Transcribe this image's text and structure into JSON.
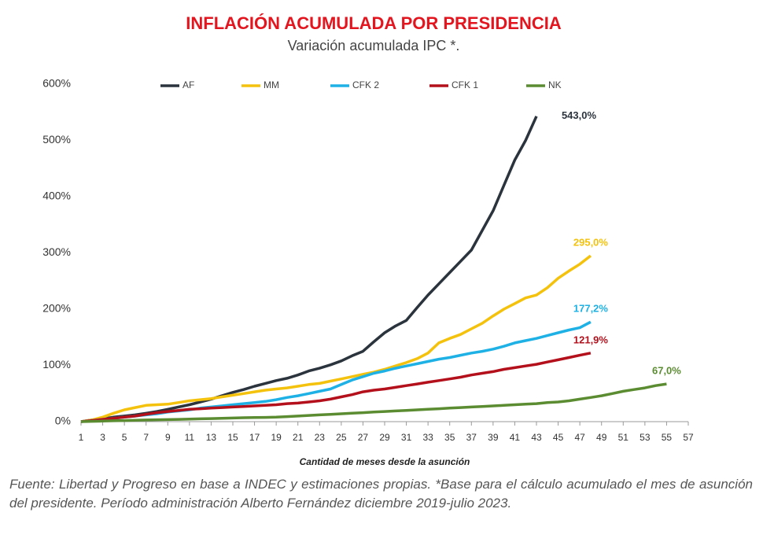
{
  "chart_data": {
    "type": "line",
    "title": "INFLACIÓN ACUMULADA POR PRESIDENCIA",
    "subtitle": "Variación acumulada IPC *.",
    "x_label": "Cantidad de meses desde la asunción",
    "footnote": "Fuente: Libertad y Progreso en base a INDEC y estimaciones propias. *Base para el cálculo acumulado el mes de asunción del presidente. Período administración Alberto Fernández diciembre 2019-julio 2023.",
    "x": [
      1,
      2,
      3,
      4,
      5,
      6,
      7,
      8,
      9,
      10,
      11,
      12,
      13,
      14,
      15,
      16,
      17,
      18,
      19,
      20,
      21,
      22,
      23,
      24,
      25,
      26,
      27,
      28,
      29,
      30,
      31,
      32,
      33,
      34,
      35,
      36,
      37,
      38,
      39,
      40,
      41,
      42,
      43,
      44,
      45,
      46,
      47,
      48,
      49,
      50,
      51,
      52,
      53,
      54,
      55
    ],
    "xlim": [
      1,
      57
    ],
    "xticks": [
      1,
      3,
      5,
      7,
      9,
      11,
      13,
      15,
      17,
      19,
      21,
      23,
      25,
      27,
      29,
      31,
      33,
      35,
      37,
      39,
      41,
      43,
      45,
      47,
      49,
      51,
      53,
      55,
      57
    ],
    "ylim": [
      0,
      600
    ],
    "yticks": [
      {
        "value": 0,
        "label": "0%"
      },
      {
        "value": 100,
        "label": "100%"
      },
      {
        "value": 200,
        "label": "200%"
      },
      {
        "value": 300,
        "label": "300%"
      },
      {
        "value": 400,
        "label": "400%"
      },
      {
        "value": 500,
        "label": "500%"
      },
      {
        "value": 600,
        "label": "600%"
      }
    ],
    "legend": "top",
    "series": [
      {
        "name": "AF",
        "color": "#2b333d",
        "end_label": "543,0%",
        "values": [
          0,
          3,
          5,
          8,
          10,
          12,
          15,
          18,
          22,
          26,
          30,
          35,
          40,
          46,
          52,
          57,
          63,
          68,
          73,
          77,
          83,
          90,
          95,
          101,
          108,
          117,
          125,
          142,
          158,
          170,
          180,
          203,
          225,
          245,
          265,
          285,
          305,
          340,
          375,
          420,
          465,
          500,
          543,
          null,
          null,
          null,
          null,
          null,
          null,
          null,
          null,
          null,
          null,
          null,
          null
        ]
      },
      {
        "name": "MM",
        "color": "#f4c20d",
        "end_label": "295,0%",
        "values": [
          0,
          3,
          8,
          15,
          21,
          25,
          29,
          30,
          31,
          34,
          37,
          39,
          41,
          44,
          47,
          50,
          53,
          56,
          58,
          60,
          63,
          66,
          68,
          72,
          76,
          80,
          84,
          88,
          93,
          99,
          105,
          112,
          122,
          140,
          148,
          155,
          165,
          175,
          188,
          200,
          210,
          220,
          225,
          238,
          255,
          268,
          280,
          295,
          null,
          null,
          null,
          null,
          null,
          null,
          null
        ]
      },
      {
        "name": "CFK 2",
        "color": "#1eb1e6",
        "end_label": "177,2%",
        "values": [
          0,
          2,
          4,
          6,
          8,
          10,
          12,
          14,
          17,
          19,
          21,
          24,
          26,
          28,
          30,
          32,
          34,
          36,
          39,
          43,
          46,
          50,
          54,
          58,
          66,
          74,
          80,
          86,
          90,
          95,
          99,
          103,
          107,
          111,
          114,
          118,
          122,
          125,
          129,
          134,
          140,
          144,
          148,
          153,
          158,
          163,
          167,
          177.2,
          null,
          null,
          null,
          null,
          null,
          null,
          null
        ]
      },
      {
        "name": "CFK 1",
        "color": "#b3101c",
        "end_label": "121,9%",
        "values": [
          0,
          2,
          4,
          6,
          8,
          10,
          13,
          16,
          18,
          20,
          22,
          23,
          24,
          25,
          26,
          27,
          28,
          29,
          30,
          32,
          33,
          35,
          37,
          40,
          44,
          48,
          53,
          56,
          58,
          61,
          64,
          67,
          70,
          73,
          76,
          79,
          83,
          86,
          89,
          93,
          96,
          99,
          102,
          106,
          110,
          114,
          118,
          121.9,
          null,
          null,
          null,
          null,
          null,
          null,
          null
        ]
      },
      {
        "name": "NK",
        "color": "#5b8c32",
        "end_label": "67,0%",
        "values": [
          0,
          0.5,
          1,
          1.5,
          2,
          2.5,
          3,
          3.3,
          3.6,
          4,
          4.5,
          5,
          5.5,
          6,
          6.5,
          7,
          7.3,
          7.6,
          8,
          9,
          10,
          11,
          12,
          13,
          14,
          15,
          16,
          17,
          18,
          19,
          20,
          21,
          22,
          23,
          24,
          25,
          26,
          27,
          28,
          29,
          30,
          31,
          32,
          34,
          35,
          37,
          40,
          43,
          46,
          50,
          54,
          57,
          60,
          64,
          67
        ]
      }
    ]
  }
}
